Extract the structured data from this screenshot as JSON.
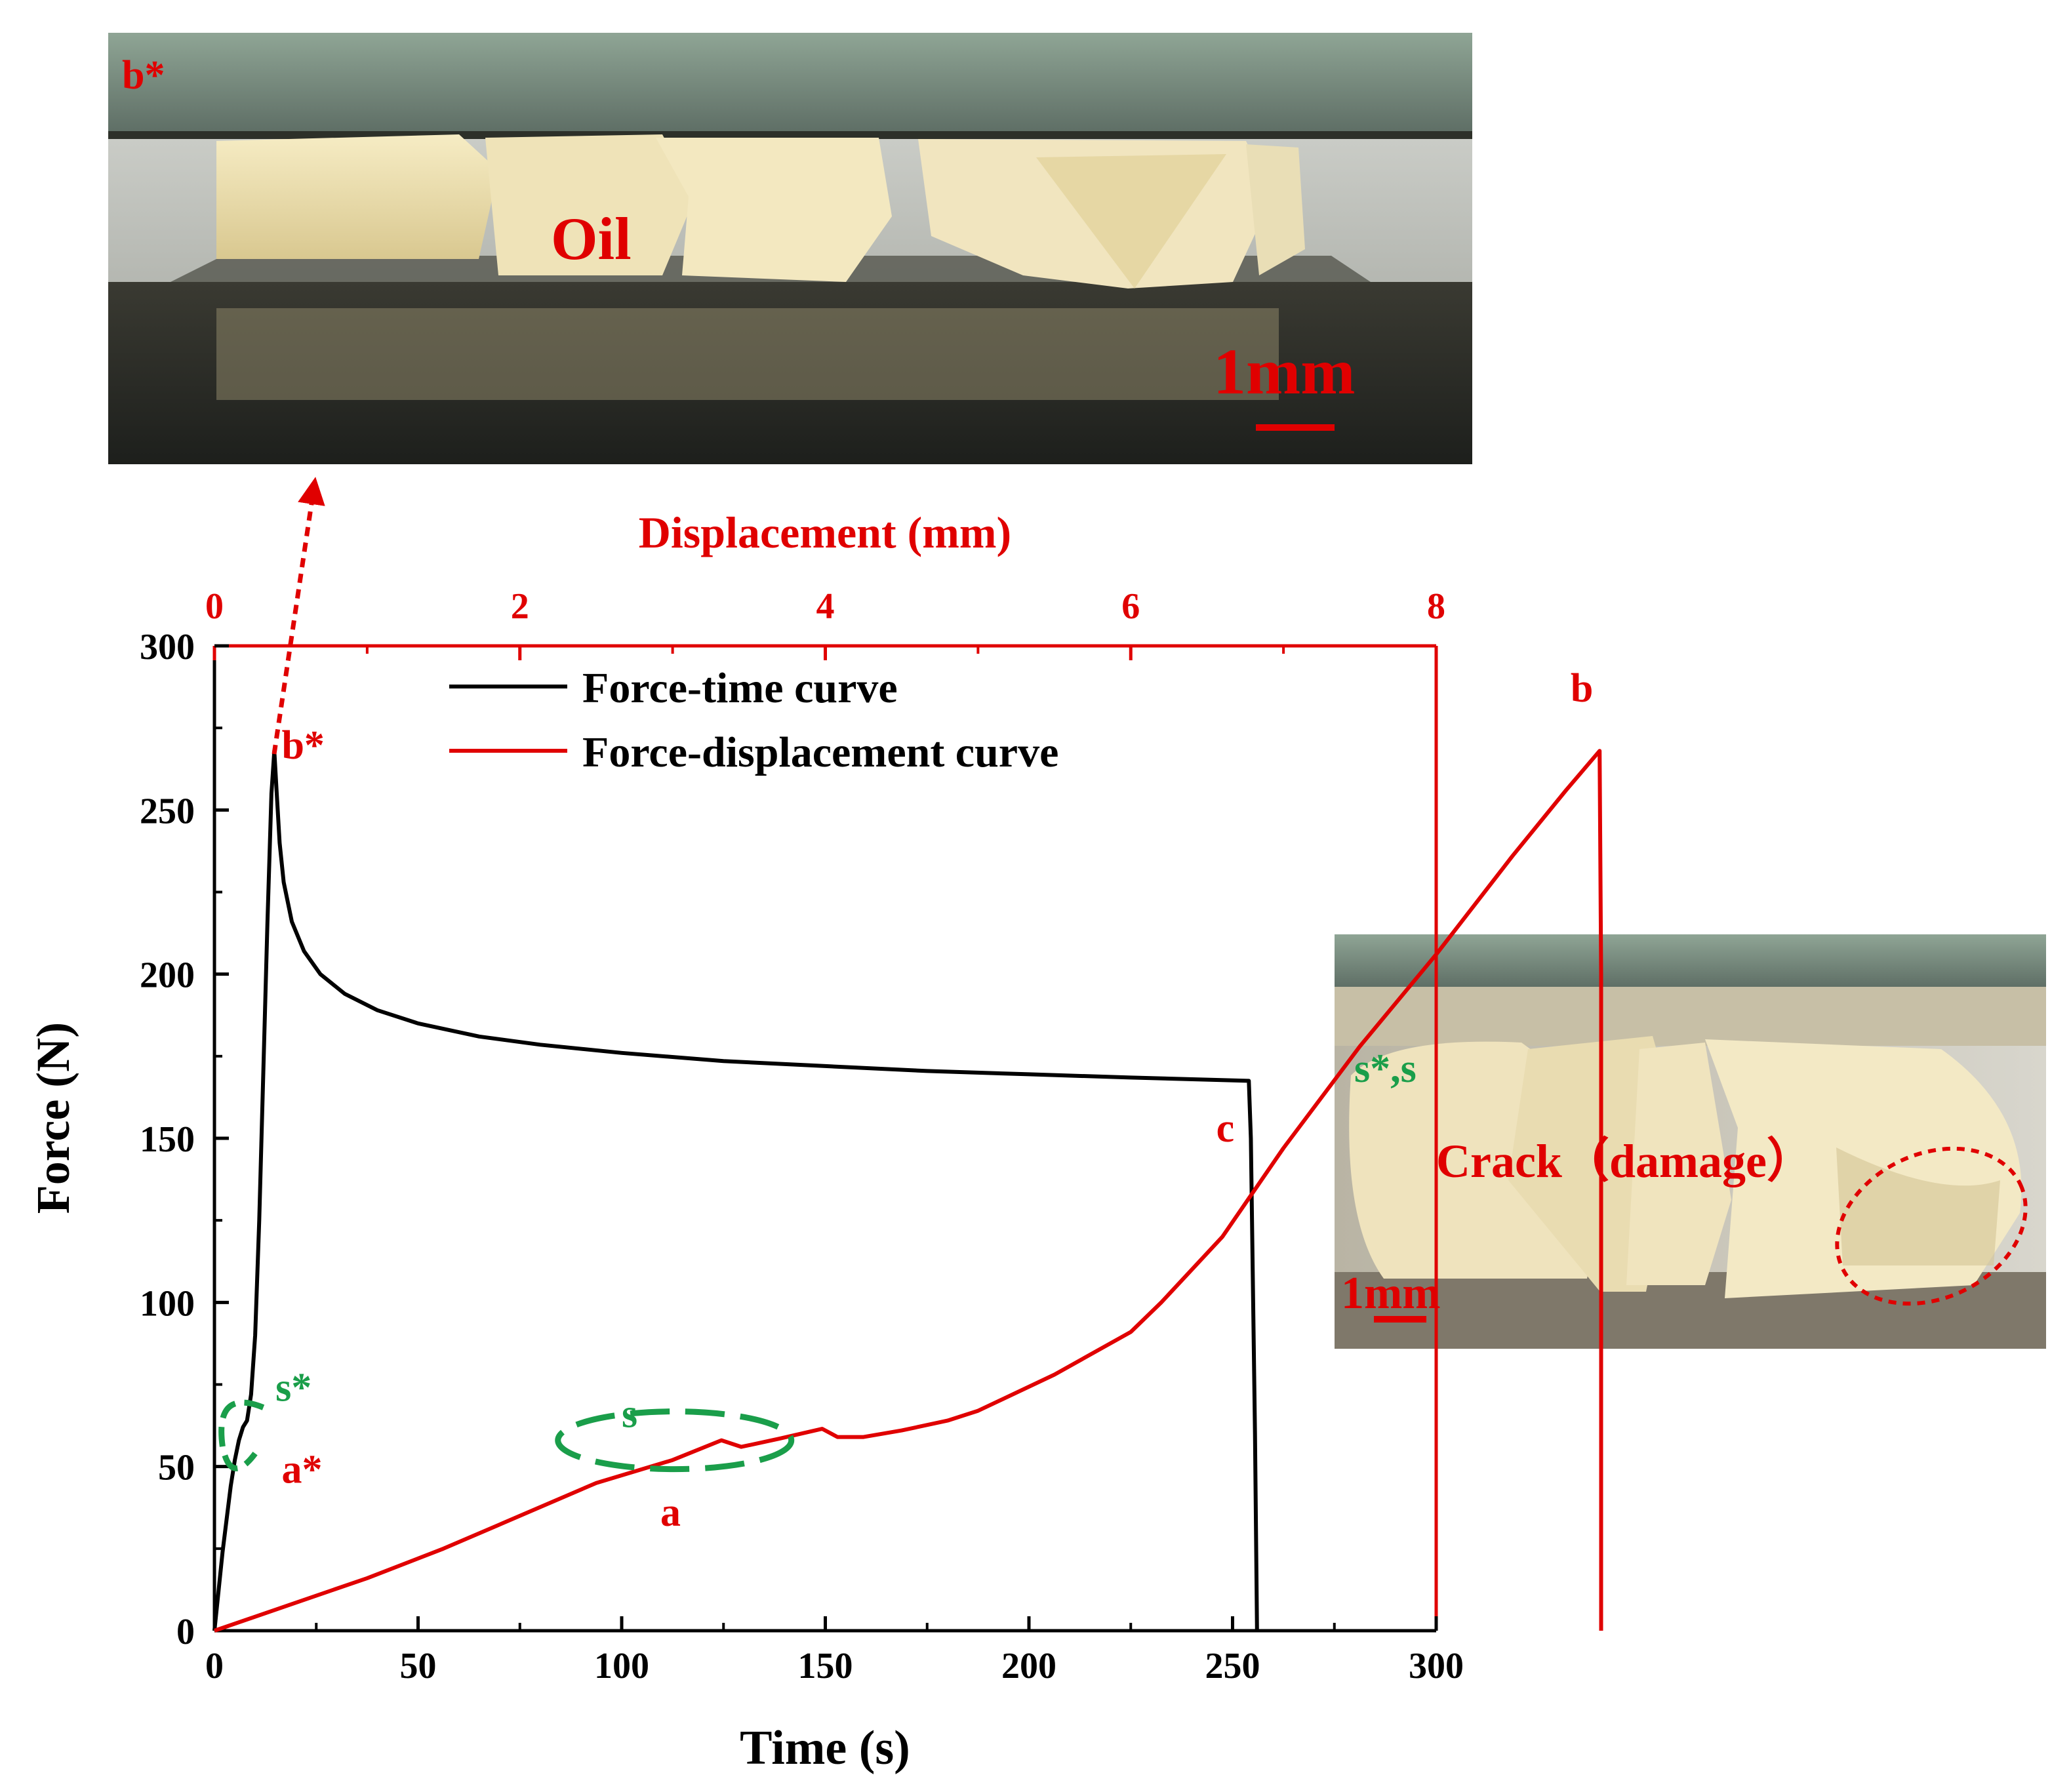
{
  "chart_data": {
    "type": "line",
    "xlabel": "Time (s)",
    "x2label": "Displacement (mm)",
    "ylabel": "Force (N)",
    "xlim": [
      0,
      300
    ],
    "x2lim": [
      0,
      8
    ],
    "ylim": [
      0,
      300
    ],
    "xticks": [
      0,
      50,
      100,
      150,
      200,
      250,
      300
    ],
    "x2ticks": [
      0,
      2,
      4,
      6,
      8
    ],
    "yticks": [
      0,
      50,
      100,
      150,
      200,
      250,
      300
    ],
    "legend_position": "top-center",
    "series": [
      {
        "name": "Force-time curve",
        "color": "#000000",
        "x_axis": "Time (s)",
        "points": [
          [
            0,
            0
          ],
          [
            1,
            12
          ],
          [
            2,
            24
          ],
          [
            3,
            34
          ],
          [
            4,
            44
          ],
          [
            5,
            52
          ],
          [
            6,
            58
          ],
          [
            7,
            62
          ],
          [
            8,
            64
          ],
          [
            9,
            72
          ],
          [
            10,
            90
          ],
          [
            11,
            125
          ],
          [
            12,
            170
          ],
          [
            13,
            215
          ],
          [
            14,
            255
          ],
          [
            14.7,
            268
          ],
          [
            15.3,
            255
          ],
          [
            16,
            240
          ],
          [
            17,
            228
          ],
          [
            19,
            216
          ],
          [
            22,
            207
          ],
          [
            26,
            200
          ],
          [
            32,
            194
          ],
          [
            40,
            189
          ],
          [
            50,
            185
          ],
          [
            65,
            181
          ],
          [
            80,
            178.5
          ],
          [
            100,
            176
          ],
          [
            125,
            173.5
          ],
          [
            150,
            172
          ],
          [
            175,
            170.5
          ],
          [
            200,
            169.5
          ],
          [
            225,
            168.5
          ],
          [
            254,
            167.5
          ],
          [
            254.5,
            150
          ],
          [
            255.5,
            60
          ],
          [
            256,
            0
          ]
        ]
      },
      {
        "name": "Force-displacement curve",
        "color": "#e00000",
        "x_axis": "Displacement (mm)",
        "points": [
          [
            0,
            0
          ],
          [
            0.5,
            8
          ],
          [
            1,
            16
          ],
          [
            1.5,
            25
          ],
          [
            2,
            35
          ],
          [
            2.5,
            45
          ],
          [
            3,
            52
          ],
          [
            3.32,
            58
          ],
          [
            3.45,
            56
          ],
          [
            3.7,
            58.5
          ],
          [
            3.98,
            61.5
          ],
          [
            4.08,
            59
          ],
          [
            4.25,
            59
          ],
          [
            4.5,
            61
          ],
          [
            4.8,
            64
          ],
          [
            5,
            67
          ],
          [
            5.5,
            78
          ],
          [
            6,
            91
          ],
          [
            6.2,
            100
          ],
          [
            6.6,
            120
          ],
          [
            7,
            147
          ],
          [
            7.5,
            178
          ],
          [
            8,
            206
          ],
          [
            8.5,
            236
          ],
          [
            8.85,
            256
          ],
          [
            9.07,
            268
          ],
          [
            9.08,
            200
          ],
          [
            9.08,
            100
          ],
          [
            9.08,
            0
          ]
        ]
      }
    ],
    "annotations": [
      "b*",
      "b",
      "c",
      "s*",
      "a*",
      "s",
      "a"
    ],
    "colors": {
      "force_time": "#000000",
      "force_displacement": "#e00000",
      "annotation_red": "#e00000",
      "annotation_green": "#1a9e4a"
    }
  },
  "photos": {
    "top": {
      "label": "b*",
      "oil_label": "Oil",
      "scale_label": "1mm"
    },
    "right": {
      "label": "s*,s",
      "crack_label": "Crack（damage）",
      "scale_label": "1mm"
    }
  }
}
